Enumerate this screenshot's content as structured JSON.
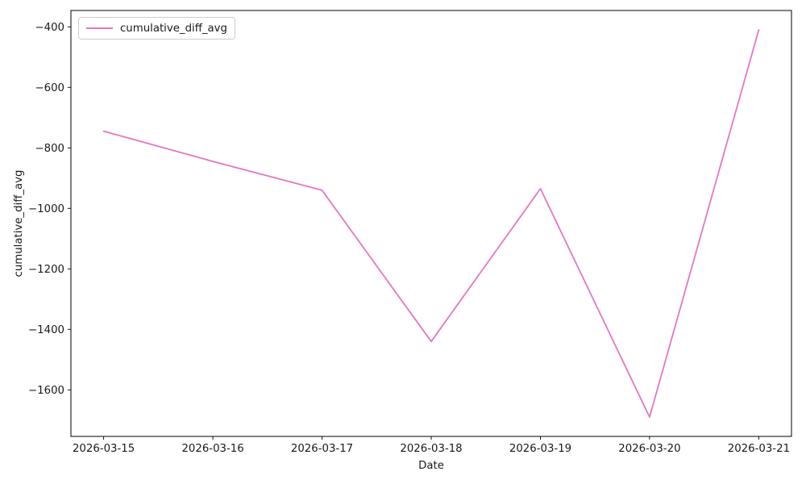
{
  "chart_data": {
    "type": "line",
    "title": "",
    "xlabel": "Date",
    "ylabel": "cumulative_diff_avg",
    "categories": [
      "2026-03-15",
      "2026-03-16",
      "2026-03-17",
      "2026-03-18",
      "2026-03-19",
      "2026-03-20",
      "2026-03-21"
    ],
    "series": [
      {
        "name": "cumulative_diff_avg",
        "color": "#e377c2",
        "values": [
          -745,
          -845,
          -940,
          -1440,
          -935,
          -1690,
          -410
        ]
      }
    ],
    "yticks": {
      "values": [
        -400,
        -600,
        -800,
        -1000,
        -1200,
        -1400,
        -1600
      ],
      "labels": [
        "−400",
        "−600",
        "−800",
        "−1000",
        "−1200",
        "−1400",
        "−1600"
      ]
    },
    "ylim": [
      -1754,
      -346
    ],
    "xlim_index": [
      -0.3,
      6.3
    ],
    "grid": false,
    "legend": {
      "position": "upper left",
      "entries": [
        "cumulative_diff_avg"
      ]
    },
    "colors": {
      "background": "#ffffff",
      "spine": "#000000",
      "text": "#1a1a1a",
      "legend_border": "#cccccc"
    }
  }
}
